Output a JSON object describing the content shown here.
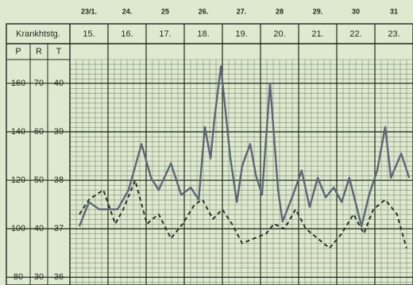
{
  "chart_data": {
    "type": "line",
    "row_label": "Krankhtstg.",
    "categories": [
      "23/1.",
      "24.",
      "25",
      "26.",
      "27.",
      "28",
      "29.",
      "30",
      "31"
    ],
    "day_numbers": [
      "15.",
      "16.",
      "17.",
      "18.",
      "19.",
      "20.",
      "21.",
      "22.",
      "23."
    ],
    "column_labels": [
      "P",
      "R",
      "T"
    ],
    "xlim": [
      0,
      9
    ],
    "ylim": [
      35.84,
      40.49
    ],
    "yticks": [
      36,
      37,
      38,
      39,
      40
    ],
    "y2lim": [
      76.8,
      169.8
    ],
    "y2ticks": [
      80,
      100,
      120,
      140,
      160
    ],
    "y3lim": [
      28.4,
      74.9
    ],
    "y3ticks": [
      30,
      40,
      50,
      60,
      70
    ],
    "grid": true,
    "series": [
      {
        "name": "P",
        "axis": "y2",
        "color": "#5b6677",
        "style": "solid",
        "x": [
          0.25,
          0.5,
          0.77,
          1.25,
          1.54,
          1.88,
          2.13,
          2.33,
          2.65,
          2.92,
          3.17,
          3.38,
          3.54,
          3.69,
          3.79,
          3.96,
          4.21,
          4.38,
          4.52,
          4.73,
          4.88,
          5.04,
          5.25,
          5.46,
          5.58,
          5.83,
          6.08,
          6.29,
          6.5,
          6.71,
          6.92,
          7.13,
          7.33,
          7.65,
          7.85,
          8.06,
          8.27,
          8.42,
          8.69,
          8.9
        ],
        "values": [
          101,
          111,
          108,
          108,
          116,
          135,
          121,
          116,
          127,
          114,
          117,
          112,
          142,
          129,
          145,
          167,
          129,
          111,
          126,
          135,
          122,
          114,
          160,
          116,
          103,
          113,
          124,
          109,
          121,
          113,
          117,
          111,
          121,
          101,
          114,
          124,
          142,
          121,
          131,
          121
        ]
      },
      {
        "name": "T",
        "axis": "y",
        "color": "#2a2f2a",
        "style": "dashed",
        "x": [
          0.25,
          0.5,
          0.88,
          1.19,
          1.4,
          1.71,
          2.02,
          2.33,
          2.65,
          2.96,
          3.27,
          3.48,
          3.75,
          4.0,
          4.25,
          4.52,
          4.83,
          5.15,
          5.35,
          5.63,
          5.92,
          6.19,
          6.5,
          6.81,
          7.13,
          7.44,
          7.71,
          7.96,
          8.27,
          8.58,
          8.83
        ],
        "values": [
          37.3,
          37.6,
          37.8,
          37.1,
          37.4,
          38.0,
          37.1,
          37.3,
          36.8,
          37.1,
          37.5,
          37.6,
          37.2,
          37.4,
          37.1,
          36.7,
          36.8,
          36.9,
          37.1,
          37.0,
          37.4,
          37.0,
          36.8,
          36.6,
          36.9,
          37.3,
          36.9,
          37.4,
          37.6,
          37.3,
          36.6
        ]
      }
    ]
  }
}
